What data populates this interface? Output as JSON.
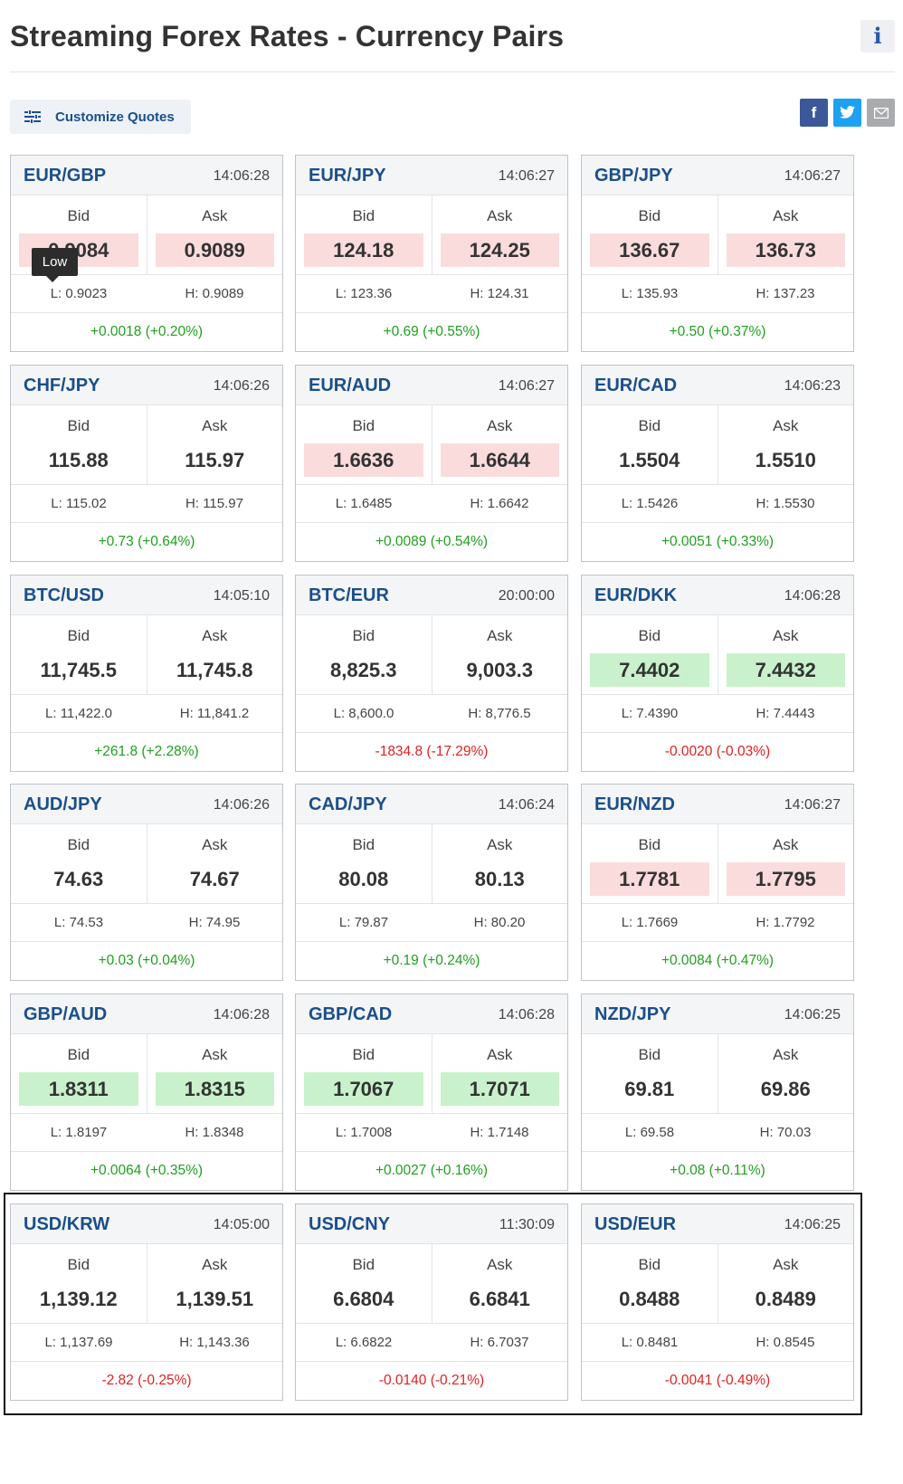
{
  "header": {
    "title": "Streaming Forex Rates - Currency Pairs",
    "info_icon": "info-icon"
  },
  "toolbar": {
    "customize_label": "Customize Quotes",
    "social": [
      "facebook-icon",
      "twitter-icon",
      "email-icon"
    ]
  },
  "labels": {
    "bid": "Bid",
    "ask": "Ask"
  },
  "colors": {
    "accent": "#1a4f8c",
    "positive": "#20a020",
    "negative": "#e32020",
    "down_fill": "#fbdcdc",
    "up_fill": "#c9f2cc"
  },
  "tooltip": {
    "text": "Low"
  },
  "cards": [
    {
      "pair": "EUR/GBP",
      "time": "14:06:28",
      "bid": "0.9084",
      "ask": "0.9089",
      "low": "L: 0.9023",
      "high": "H: 0.9089",
      "change": "+0.0018 (+0.20%)",
      "dir": "pos",
      "flash": "down"
    },
    {
      "pair": "EUR/JPY",
      "time": "14:06:27",
      "bid": "124.18",
      "ask": "124.25",
      "low": "L: 123.36",
      "high": "H: 124.31",
      "change": "+0.69 (+0.55%)",
      "dir": "pos",
      "flash": "down"
    },
    {
      "pair": "GBP/JPY",
      "time": "14:06:27",
      "bid": "136.67",
      "ask": "136.73",
      "low": "L: 135.93",
      "high": "H: 137.23",
      "change": "+0.50 (+0.37%)",
      "dir": "pos",
      "flash": "down"
    },
    {
      "pair": "CHF/JPY",
      "time": "14:06:26",
      "bid": "115.88",
      "ask": "115.97",
      "low": "L: 115.02",
      "high": "H: 115.97",
      "change": "+0.73 (+0.64%)",
      "dir": "pos",
      "flash": "none"
    },
    {
      "pair": "EUR/AUD",
      "time": "14:06:27",
      "bid": "1.6636",
      "ask": "1.6644",
      "low": "L: 1.6485",
      "high": "H: 1.6642",
      "change": "+0.0089 (+0.54%)",
      "dir": "pos",
      "flash": "down"
    },
    {
      "pair": "EUR/CAD",
      "time": "14:06:23",
      "bid": "1.5504",
      "ask": "1.5510",
      "low": "L: 1.5426",
      "high": "H: 1.5530",
      "change": "+0.0051 (+0.33%)",
      "dir": "pos",
      "flash": "none"
    },
    {
      "pair": "BTC/USD",
      "time": "14:05:10",
      "bid": "11,745.5",
      "ask": "11,745.8",
      "low": "L: 11,422.0",
      "high": "H: 11,841.2",
      "change": "+261.8 (+2.28%)",
      "dir": "pos",
      "flash": "none"
    },
    {
      "pair": "BTC/EUR",
      "time": "20:00:00",
      "bid": "8,825.3",
      "ask": "9,003.3",
      "low": "L: 8,600.0",
      "high": "H: 8,776.5",
      "change": "-1834.8 (-17.29%)",
      "dir": "neg",
      "flash": "none"
    },
    {
      "pair": "EUR/DKK",
      "time": "14:06:28",
      "bid": "7.4402",
      "ask": "7.4432",
      "low": "L: 7.4390",
      "high": "H: 7.4443",
      "change": "-0.0020 (-0.03%)",
      "dir": "neg",
      "flash": "up"
    },
    {
      "pair": "AUD/JPY",
      "time": "14:06:26",
      "bid": "74.63",
      "ask": "74.67",
      "low": "L: 74.53",
      "high": "H: 74.95",
      "change": "+0.03 (+0.04%)",
      "dir": "pos",
      "flash": "none"
    },
    {
      "pair": "CAD/JPY",
      "time": "14:06:24",
      "bid": "80.08",
      "ask": "80.13",
      "low": "L: 79.87",
      "high": "H: 80.20",
      "change": "+0.19 (+0.24%)",
      "dir": "pos",
      "flash": "none"
    },
    {
      "pair": "EUR/NZD",
      "time": "14:06:27",
      "bid": "1.7781",
      "ask": "1.7795",
      "low": "L: 1.7669",
      "high": "H: 1.7792",
      "change": "+0.0084 (+0.47%)",
      "dir": "pos",
      "flash": "down"
    },
    {
      "pair": "GBP/AUD",
      "time": "14:06:28",
      "bid": "1.8311",
      "ask": "1.8315",
      "low": "L: 1.8197",
      "high": "H: 1.8348",
      "change": "+0.0064 (+0.35%)",
      "dir": "pos",
      "flash": "up"
    },
    {
      "pair": "GBP/CAD",
      "time": "14:06:28",
      "bid": "1.7067",
      "ask": "1.7071",
      "low": "L: 1.7008",
      "high": "H: 1.7148",
      "change": "+0.0027 (+0.16%)",
      "dir": "pos",
      "flash": "up"
    },
    {
      "pair": "NZD/JPY",
      "time": "14:06:25",
      "bid": "69.81",
      "ask": "69.86",
      "low": "L: 69.58",
      "high": "H: 70.03",
      "change": "+0.08 (+0.11%)",
      "dir": "pos",
      "flash": "none"
    },
    {
      "pair": "USD/KRW",
      "time": "14:05:00",
      "bid": "1,139.12",
      "ask": "1,139.51",
      "low": "L: 1,137.69",
      "high": "H: 1,143.36",
      "change": "-2.82 (-0.25%)",
      "dir": "neg",
      "flash": "none"
    },
    {
      "pair": "USD/CNY",
      "time": "11:30:09",
      "bid": "6.6804",
      "ask": "6.6841",
      "low": "L: 6.6822",
      "high": "H: 6.7037",
      "change": "-0.0140 (-0.21%)",
      "dir": "neg",
      "flash": "none"
    },
    {
      "pair": "USD/EUR",
      "time": "14:06:25",
      "bid": "0.8488",
      "ask": "0.8489",
      "low": "L: 0.8481",
      "high": "H: 0.8545",
      "change": "-0.0041 (-0.49%)",
      "dir": "neg",
      "flash": "none"
    }
  ]
}
